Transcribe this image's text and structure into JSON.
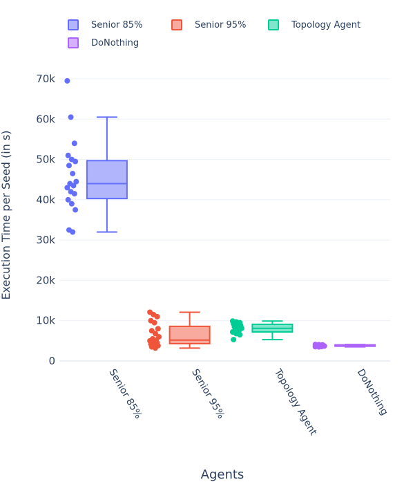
{
  "chart_data": {
    "type": "box",
    "xlabel": "Agents",
    "ylabel": "Execution Time per Seed (in s)",
    "ylim": [
      0,
      72000
    ],
    "yticks": [
      0,
      10000,
      20000,
      30000,
      40000,
      50000,
      60000,
      70000
    ],
    "ytick_labels": [
      "0",
      "10k",
      "20k",
      "30k",
      "40k",
      "50k",
      "60k",
      "70k"
    ],
    "grid": true,
    "legend_position": "top",
    "categories": [
      "Senior 85%",
      "Senior 95%",
      "Topology Agent",
      "DoNothing"
    ],
    "series": [
      {
        "name": "Senior 85%",
        "color": "#636efa",
        "fill": "#b1b6fc",
        "box": {
          "min": 32000,
          "q1": 40300,
          "median": 44000,
          "q3": 49700,
          "max": 60500
        },
        "points": [
          69500,
          60500,
          54000,
          51000,
          50000,
          49500,
          48500,
          46500,
          44500,
          44000,
          43500,
          43000,
          42000,
          41500,
          40000,
          39000,
          37500,
          32500,
          32000
        ]
      },
      {
        "name": "Senior 95%",
        "color": "#ef553b",
        "fill": "#f7aa9d",
        "box": {
          "min": 3200,
          "q1": 4300,
          "median": 5200,
          "q3": 8600,
          "max": 12100
        },
        "points": [
          12100,
          11500,
          11000,
          10000,
          9500,
          8000,
          7500,
          6800,
          6000,
          5500,
          5200,
          5000,
          4800,
          4500,
          4200,
          4000,
          3800,
          3500,
          3200
        ]
      },
      {
        "name": "Topology Agent",
        "color": "#00cc96",
        "fill": "#80e6cb",
        "box": {
          "min": 5300,
          "q1": 7200,
          "median": 8100,
          "q3": 9100,
          "max": 9900
        },
        "points": [
          9900,
          9700,
          9500,
          9200,
          9000,
          8800,
          8500,
          8300,
          8100,
          7900,
          7500,
          7200,
          6800,
          6500,
          5300
        ]
      },
      {
        "name": "DoNothing",
        "color": "#ab63fa",
        "fill": "#d5b1fd",
        "box": {
          "min": 3500,
          "q1": 3750,
          "median": 3850,
          "q3": 4000,
          "max": 4100
        },
        "points": [
          4100,
          4050,
          4000,
          3950,
          3900,
          3850,
          3800,
          3750,
          3700,
          3650,
          3600,
          3550,
          3500
        ]
      }
    ]
  }
}
